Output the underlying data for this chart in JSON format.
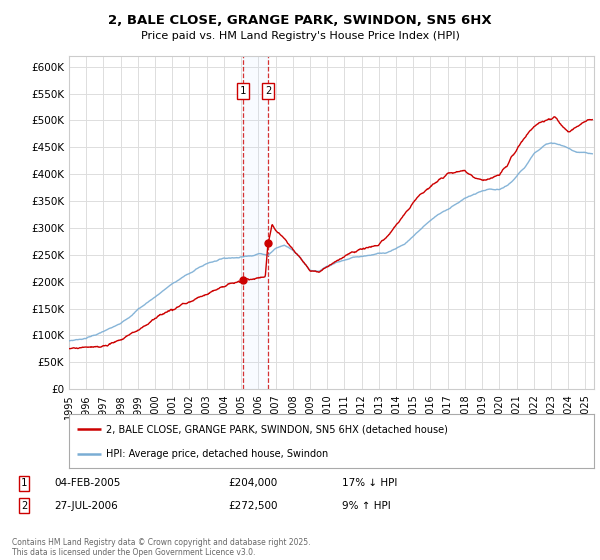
{
  "title_line1": "2, BALE CLOSE, GRANGE PARK, SWINDON, SN5 6HX",
  "title_line2": "Price paid vs. HM Land Registry's House Price Index (HPI)",
  "ylabel_ticks": [
    "£0",
    "£50K",
    "£100K",
    "£150K",
    "£200K",
    "£250K",
    "£300K",
    "£350K",
    "£400K",
    "£450K",
    "£500K",
    "£550K",
    "£600K"
  ],
  "ytick_values": [
    0,
    50000,
    100000,
    150000,
    200000,
    250000,
    300000,
    350000,
    400000,
    450000,
    500000,
    550000,
    600000
  ],
  "ylim": [
    0,
    620000
  ],
  "xlim_start": 1995.0,
  "xlim_end": 2025.5,
  "red_line_color": "#cc0000",
  "blue_line_color": "#7aadd4",
  "grid_color": "#dddddd",
  "background_color": "#ffffff",
  "sale1_x": 2005.09,
  "sale1_y": 204000,
  "sale1_label": "1",
  "sale1_date": "04-FEB-2005",
  "sale1_price": "£204,000",
  "sale1_hpi": "17% ↓ HPI",
  "sale2_x": 2006.57,
  "sale2_y": 272500,
  "sale2_label": "2",
  "sale2_date": "27-JUL-2006",
  "sale2_price": "£272,500",
  "sale2_hpi": "9% ↑ HPI",
  "legend_line1": "2, BALE CLOSE, GRANGE PARK, SWINDON, SN5 6HX (detached house)",
  "legend_line2": "HPI: Average price, detached house, Swindon",
  "footer_text": "Contains HM Land Registry data © Crown copyright and database right 2025.\nThis data is licensed under the Open Government Licence v3.0.",
  "xticks": [
    1995,
    1996,
    1997,
    1998,
    1999,
    2000,
    2001,
    2002,
    2003,
    2004,
    2005,
    2006,
    2007,
    2008,
    2009,
    2010,
    2011,
    2012,
    2013,
    2014,
    2015,
    2016,
    2017,
    2018,
    2019,
    2020,
    2021,
    2022,
    2023,
    2024,
    2025
  ]
}
